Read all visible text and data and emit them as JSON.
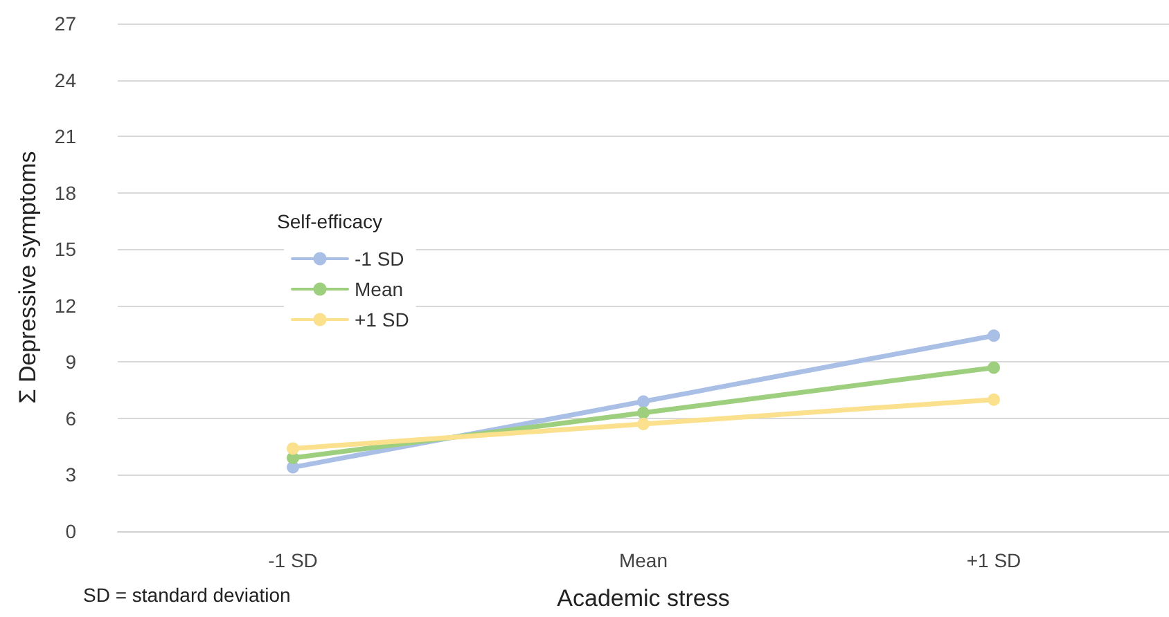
{
  "chart_data": {
    "type": "line",
    "xlabel": "Academic stress",
    "ylabel": "Σ Depressive symptoms",
    "legend_title": "Self-efficacy",
    "categories": [
      "-1 SD",
      "Mean",
      "+1 SD"
    ],
    "series": [
      {
        "name": "-1 SD",
        "color": "#a9bfe6",
        "values": [
          3.4,
          6.9,
          10.4
        ]
      },
      {
        "name": "Mean",
        "color": "#9dcf7f",
        "values": [
          3.9,
          6.3,
          8.7
        ]
      },
      {
        "name": "+1 SD",
        "color": "#fbe08e",
        "values": [
          4.4,
          5.7,
          7.0
        ]
      }
    ],
    "ylim": [
      0,
      27
    ],
    "yticks": [
      0,
      3,
      6,
      9,
      12,
      15,
      18,
      21,
      24,
      27
    ],
    "grid": "y",
    "legend": "left",
    "marker": "circle",
    "line_style": "solid",
    "annotations": [
      "SD = standard deviation"
    ]
  }
}
